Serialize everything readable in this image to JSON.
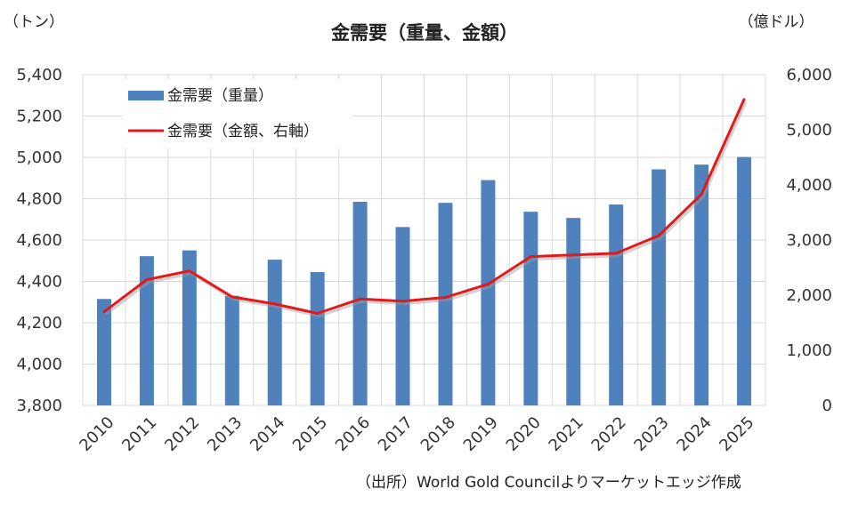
{
  "chart_data": {
    "type": "bar+line",
    "title": "金需要（重量、金額）",
    "left_unit": "（トン）",
    "right_unit": "（億ドル）",
    "source": "（出所）World Gold Councilよりマーケットエッジ作成",
    "categories": [
      "2010",
      "2011",
      "2012",
      "2013",
      "2014",
      "2015",
      "2016",
      "2017",
      "2018",
      "2019",
      "2020",
      "2021",
      "2022",
      "2023",
      "2024",
      "2025"
    ],
    "series": [
      {
        "name": "金需要（重量）",
        "type": "bar",
        "axis": "left",
        "color": "#4f81bd",
        "values": [
          4315,
          4522,
          4550,
          4330,
          4505,
          4445,
          4785,
          4663,
          4780,
          4890,
          4737,
          4707,
          4772,
          4942,
          4965,
          5002
        ]
      },
      {
        "name": "金需要（金額、右軸）",
        "type": "line",
        "axis": "right",
        "color": "#e31a1c",
        "values": [
          1700,
          2280,
          2440,
          1970,
          1840,
          1670,
          1930,
          1890,
          1960,
          2200,
          2700,
          2730,
          2760,
          3080,
          3830,
          5550
        ]
      }
    ],
    "ylim_left": [
      3800,
      5400
    ],
    "yticks_left": [
      "3,800",
      "4,000",
      "4,200",
      "4,400",
      "4,600",
      "4,800",
      "5,000",
      "5,200",
      "5,400"
    ],
    "ylim_right": [
      0,
      6000
    ],
    "yticks_right": [
      "0",
      "1,000",
      "2,000",
      "3,000",
      "4,000",
      "5,000",
      "6,000"
    ],
    "grid": true,
    "legend_position": "top-left"
  }
}
